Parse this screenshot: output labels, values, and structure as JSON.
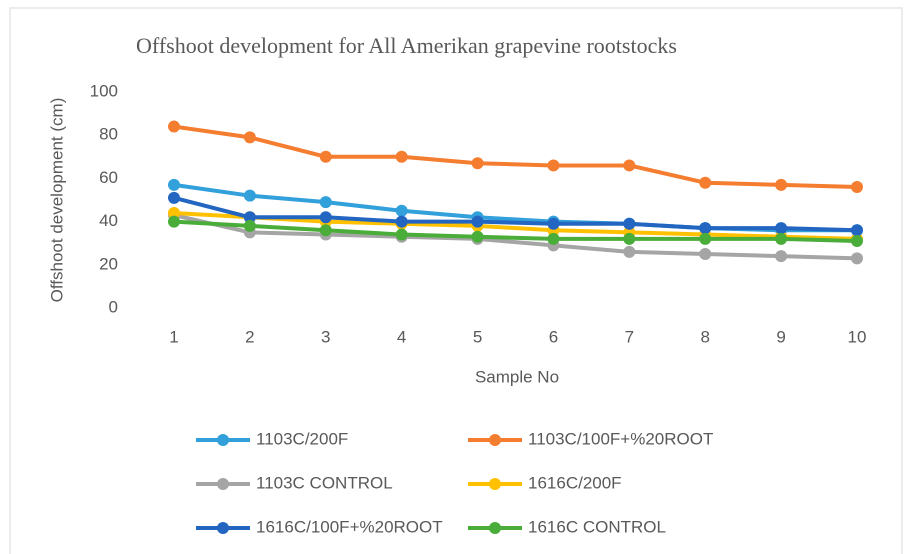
{
  "chart_data": {
    "type": "line",
    "title": "Offshoot development for All Amerikan grapevine rootstocks",
    "x_label": "Sample No",
    "y_label": "Offshoot development (cm)",
    "categories": [
      "1",
      "2",
      "3",
      "4",
      "5",
      "6",
      "7",
      "8",
      "9",
      "10"
    ],
    "ylim": [
      0,
      100
    ],
    "yticks": [
      0,
      20,
      40,
      60,
      80,
      100
    ],
    "grid": false,
    "series": [
      {
        "name": "1103C/200F",
        "color": "#31a0db",
        "values": [
          57,
          52,
          49,
          45,
          42,
          40,
          39,
          37,
          36,
          36
        ]
      },
      {
        "name": "1103C/100F+%20ROOT",
        "color": "#f47d30",
        "values": [
          84,
          79,
          70,
          70,
          67,
          66,
          66,
          58,
          57,
          56
        ]
      },
      {
        "name": "1103C CONTROL",
        "color": "#a5a5a5",
        "values": [
          43,
          35,
          34,
          33,
          32,
          29,
          26,
          25,
          24,
          23
        ]
      },
      {
        "name": "1616C/200F",
        "color": "#ffc000",
        "values": [
          44,
          42,
          40,
          39,
          38,
          36,
          35,
          34,
          33,
          32
        ]
      },
      {
        "name": "1616C/100F+%20ROOT",
        "color": "#2266c2",
        "values": [
          51,
          42,
          42,
          40,
          40,
          39,
          39,
          37,
          37,
          36
        ]
      },
      {
        "name": "1616C CONTROL",
        "color": "#4aad3a",
        "values": [
          40,
          38,
          36,
          34,
          33,
          32,
          32,
          32,
          32,
          31
        ]
      }
    ]
  }
}
